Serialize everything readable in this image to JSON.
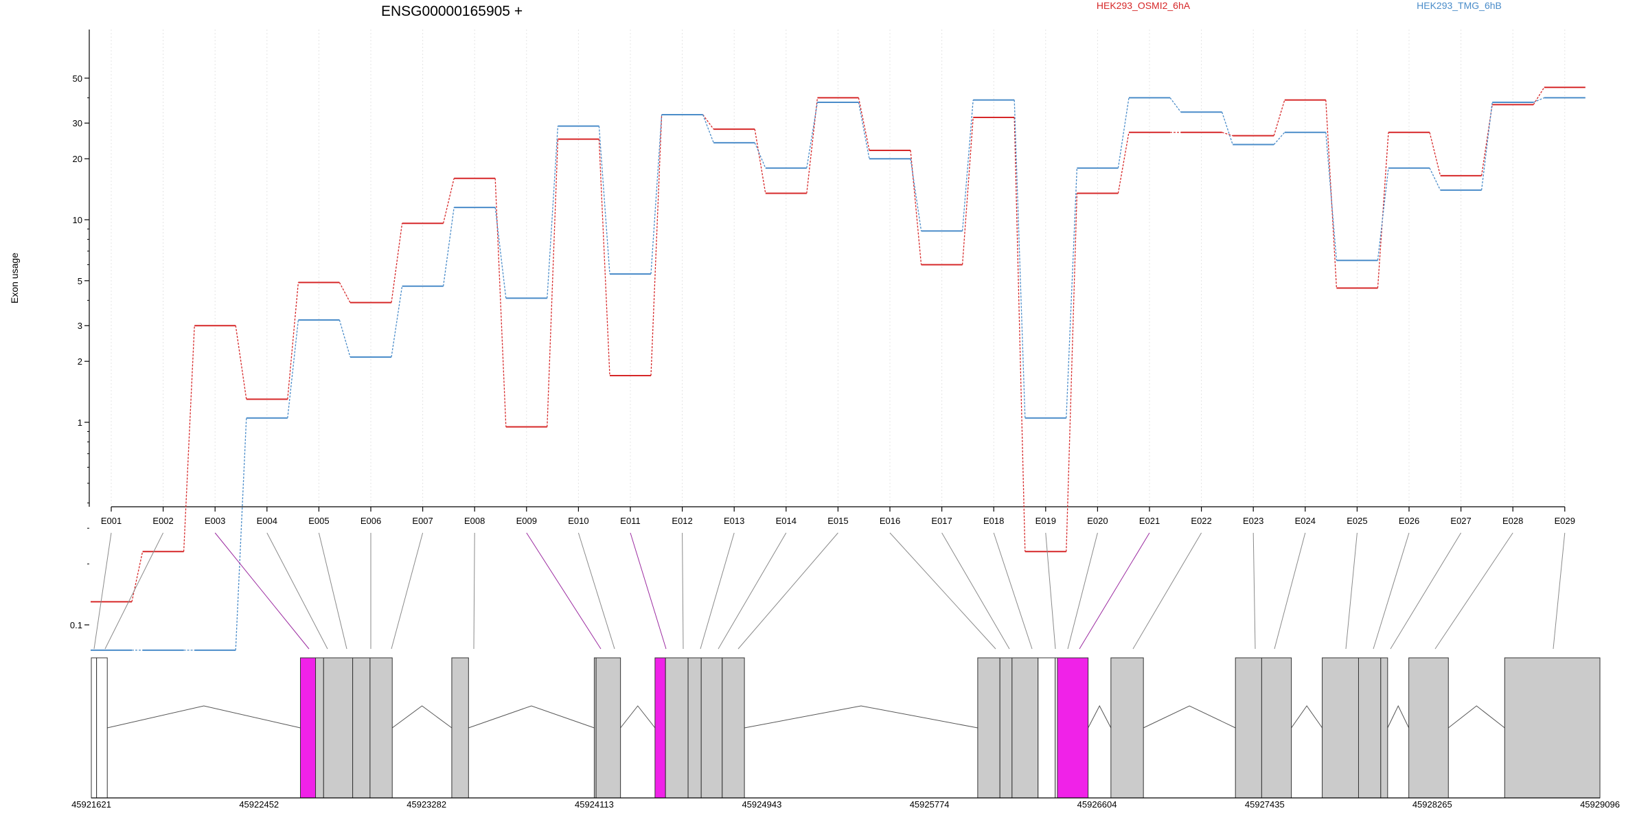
{
  "chart_data": {
    "type": "line",
    "title": "ENSG00000165905 +",
    "ylabel": "Exon usage",
    "xlabel": "",
    "y_scale": "log",
    "y_ticks": [
      "0.1",
      "1",
      "2",
      "3",
      "5",
      "10",
      "20",
      "30",
      "50"
    ],
    "categories": [
      "E001",
      "E002",
      "E003",
      "E004",
      "E005",
      "E006",
      "E007",
      "E008",
      "E009",
      "E010",
      "E011",
      "E012",
      "E013",
      "E014",
      "E015",
      "E016",
      "E017",
      "E018",
      "E019",
      "E020",
      "E021",
      "E022",
      "E023",
      "E024",
      "E025",
      "E026",
      "E027",
      "E028",
      "E029"
    ],
    "series": [
      {
        "name": "HEK293_OSMI2_6hA",
        "color": "#d62728",
        "values": [
          0.13,
          0.23,
          3.0,
          1.3,
          4.9,
          3.9,
          9.6,
          16,
          0.95,
          25,
          1.7,
          33,
          28,
          13.5,
          40,
          22,
          6,
          32,
          0.23,
          13.5,
          27,
          27,
          26,
          39,
          4.6,
          27,
          16.5,
          37,
          45
        ]
      },
      {
        "name": "HEK293_TMG_6hB",
        "color": "#4a8cc9",
        "values": [
          0.075,
          0.075,
          0.075,
          1.05,
          3.2,
          2.1,
          4.7,
          11.5,
          4.1,
          29,
          5.4,
          33,
          24,
          18,
          38,
          20,
          8.8,
          39,
          1.05,
          18,
          40,
          34,
          23.5,
          27,
          6.3,
          18,
          14,
          38,
          40
        ]
      }
    ],
    "coords_labels": [
      "45921621",
      "45922452",
      "45923282",
      "45924113",
      "45924943",
      "45925774",
      "45926604",
      "45927435",
      "45928265",
      "45929096"
    ],
    "coords_range": [
      45921621,
      45929096
    ],
    "exons": [
      {
        "start": 45921621,
        "end": 45921647,
        "highlight": false,
        "fill": "white"
      },
      {
        "start": 45921647,
        "end": 45921700,
        "highlight": false,
        "fill": "white"
      },
      {
        "start": 45922657,
        "end": 45922732,
        "highlight": true,
        "fill": "magenta"
      },
      {
        "start": 45922732,
        "end": 45922772,
        "highlight": false,
        "fill": "gray"
      },
      {
        "start": 45922772,
        "end": 45922916,
        "highlight": false,
        "fill": "gray"
      },
      {
        "start": 45922916,
        "end": 45923002,
        "highlight": false,
        "fill": "gray"
      },
      {
        "start": 45923002,
        "end": 45923112,
        "highlight": false,
        "fill": "gray"
      },
      {
        "start": 45923407,
        "end": 45923490,
        "highlight": false,
        "fill": "gray"
      },
      {
        "start": 45924113,
        "end": 45924122,
        "highlight": false,
        "fill": "gray"
      },
      {
        "start": 45924122,
        "end": 45924243,
        "highlight": false,
        "fill": "gray"
      },
      {
        "start": 45924414,
        "end": 45924466,
        "highlight": true,
        "fill": "magenta"
      },
      {
        "start": 45924466,
        "end": 45924578,
        "highlight": false,
        "fill": "gray"
      },
      {
        "start": 45924578,
        "end": 45924643,
        "highlight": false,
        "fill": "gray"
      },
      {
        "start": 45924643,
        "end": 45924747,
        "highlight": false,
        "fill": "gray"
      },
      {
        "start": 45924747,
        "end": 45924857,
        "highlight": false,
        "fill": "gray"
      },
      {
        "start": 45926013,
        "end": 45926123,
        "highlight": false,
        "fill": "gray"
      },
      {
        "start": 45926123,
        "end": 45926183,
        "highlight": false,
        "fill": "gray"
      },
      {
        "start": 45926183,
        "end": 45926312,
        "highlight": false,
        "fill": "gray"
      },
      {
        "start": 45926312,
        "end": 45926397,
        "highlight": false,
        "fill": "white"
      },
      {
        "start": 45926397,
        "end": 45926408,
        "highlight": false,
        "fill": "white"
      },
      {
        "start": 45926408,
        "end": 45926560,
        "highlight": true,
        "fill": "magenta"
      },
      {
        "start": 45926673,
        "end": 45926834,
        "highlight": false,
        "fill": "gray"
      },
      {
        "start": 45927290,
        "end": 45927420,
        "highlight": false,
        "fill": "gray"
      },
      {
        "start": 45927420,
        "end": 45927567,
        "highlight": false,
        "fill": "gray"
      },
      {
        "start": 45927720,
        "end": 45927900,
        "highlight": false,
        "fill": "gray"
      },
      {
        "start": 45927900,
        "end": 45928010,
        "highlight": false,
        "fill": "gray"
      },
      {
        "start": 45928010,
        "end": 45928044,
        "highlight": false,
        "fill": "gray"
      },
      {
        "start": 45928149,
        "end": 45928345,
        "highlight": false,
        "fill": "gray"
      },
      {
        "start": 45928624,
        "end": 45929096,
        "highlight": false,
        "fill": "gray"
      }
    ],
    "grid": "vertical-dotted",
    "legend_position": "top"
  }
}
